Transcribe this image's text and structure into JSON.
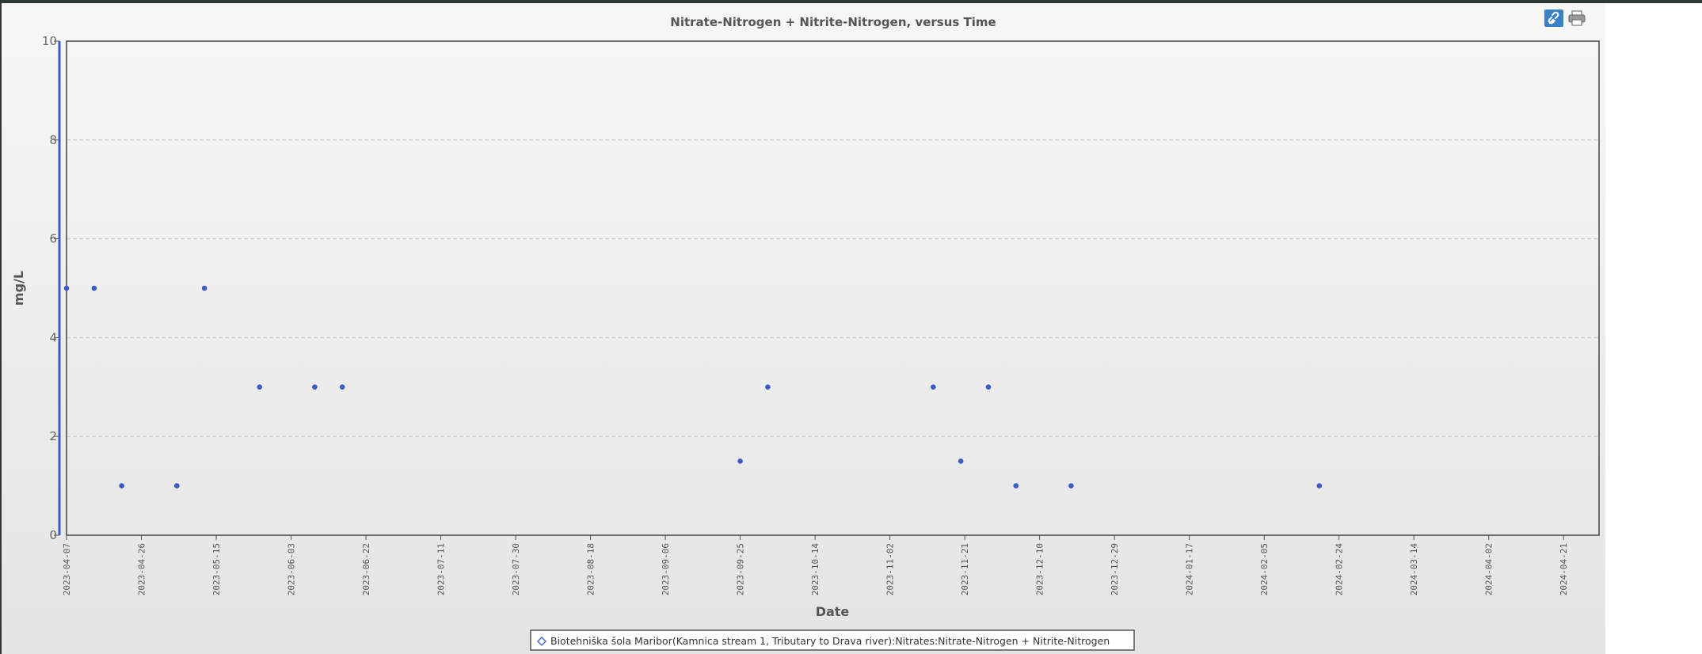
{
  "chart_data": {
    "type": "scatter",
    "title": "Nitrate-Nitrogen + Nitrite-Nitrogen, versus Time",
    "xlabel": "Date",
    "ylabel": "mg/L",
    "xlim": [
      "2023-04-07",
      "2024-04-30"
    ],
    "ylim": [
      0,
      10
    ],
    "y_ticks": [
      0,
      2,
      4,
      6,
      8,
      10
    ],
    "x_ticks": [
      "2023-04-07",
      "2023-04-26",
      "2023-05-15",
      "2023-06-03",
      "2023-06-22",
      "2023-07-11",
      "2023-07-30",
      "2023-08-18",
      "2023-09-06",
      "2023-09-25",
      "2023-10-14",
      "2023-11-02",
      "2023-11-21",
      "2023-12-10",
      "2023-12-29",
      "2024-01-17",
      "2024-02-05",
      "2024-02-24",
      "2024-03-14",
      "2024-04-02",
      "2024-04-21"
    ],
    "grid": true,
    "legend_position": "bottom-center",
    "series": [
      {
        "name": "Biotehniška šola Maribor(Kamnica stream 1, Tributary to Drava river):Nitrates:Nitrate-Nitrogen + Nitrite-Nitrogen",
        "color": "#3d5bc7",
        "points": [
          {
            "x": "2023-04-07",
            "y": 5
          },
          {
            "x": "2023-04-14",
            "y": 5
          },
          {
            "x": "2023-04-21",
            "y": 1
          },
          {
            "x": "2023-05-05",
            "y": 1
          },
          {
            "x": "2023-05-12",
            "y": 5
          },
          {
            "x": "2023-05-26",
            "y": 3
          },
          {
            "x": "2023-06-09",
            "y": 3
          },
          {
            "x": "2023-06-16",
            "y": 3
          },
          {
            "x": "2023-09-25",
            "y": 1.5
          },
          {
            "x": "2023-10-02",
            "y": 3
          },
          {
            "x": "2023-11-13",
            "y": 3
          },
          {
            "x": "2023-11-20",
            "y": 1.5
          },
          {
            "x": "2023-11-27",
            "y": 3
          },
          {
            "x": "2023-12-04",
            "y": 1
          },
          {
            "x": "2023-12-18",
            "y": 1
          },
          {
            "x": "2024-02-19",
            "y": 1
          }
        ]
      }
    ]
  },
  "toolbar": {
    "link_icon": "link-icon",
    "print_icon": "print-icon"
  }
}
